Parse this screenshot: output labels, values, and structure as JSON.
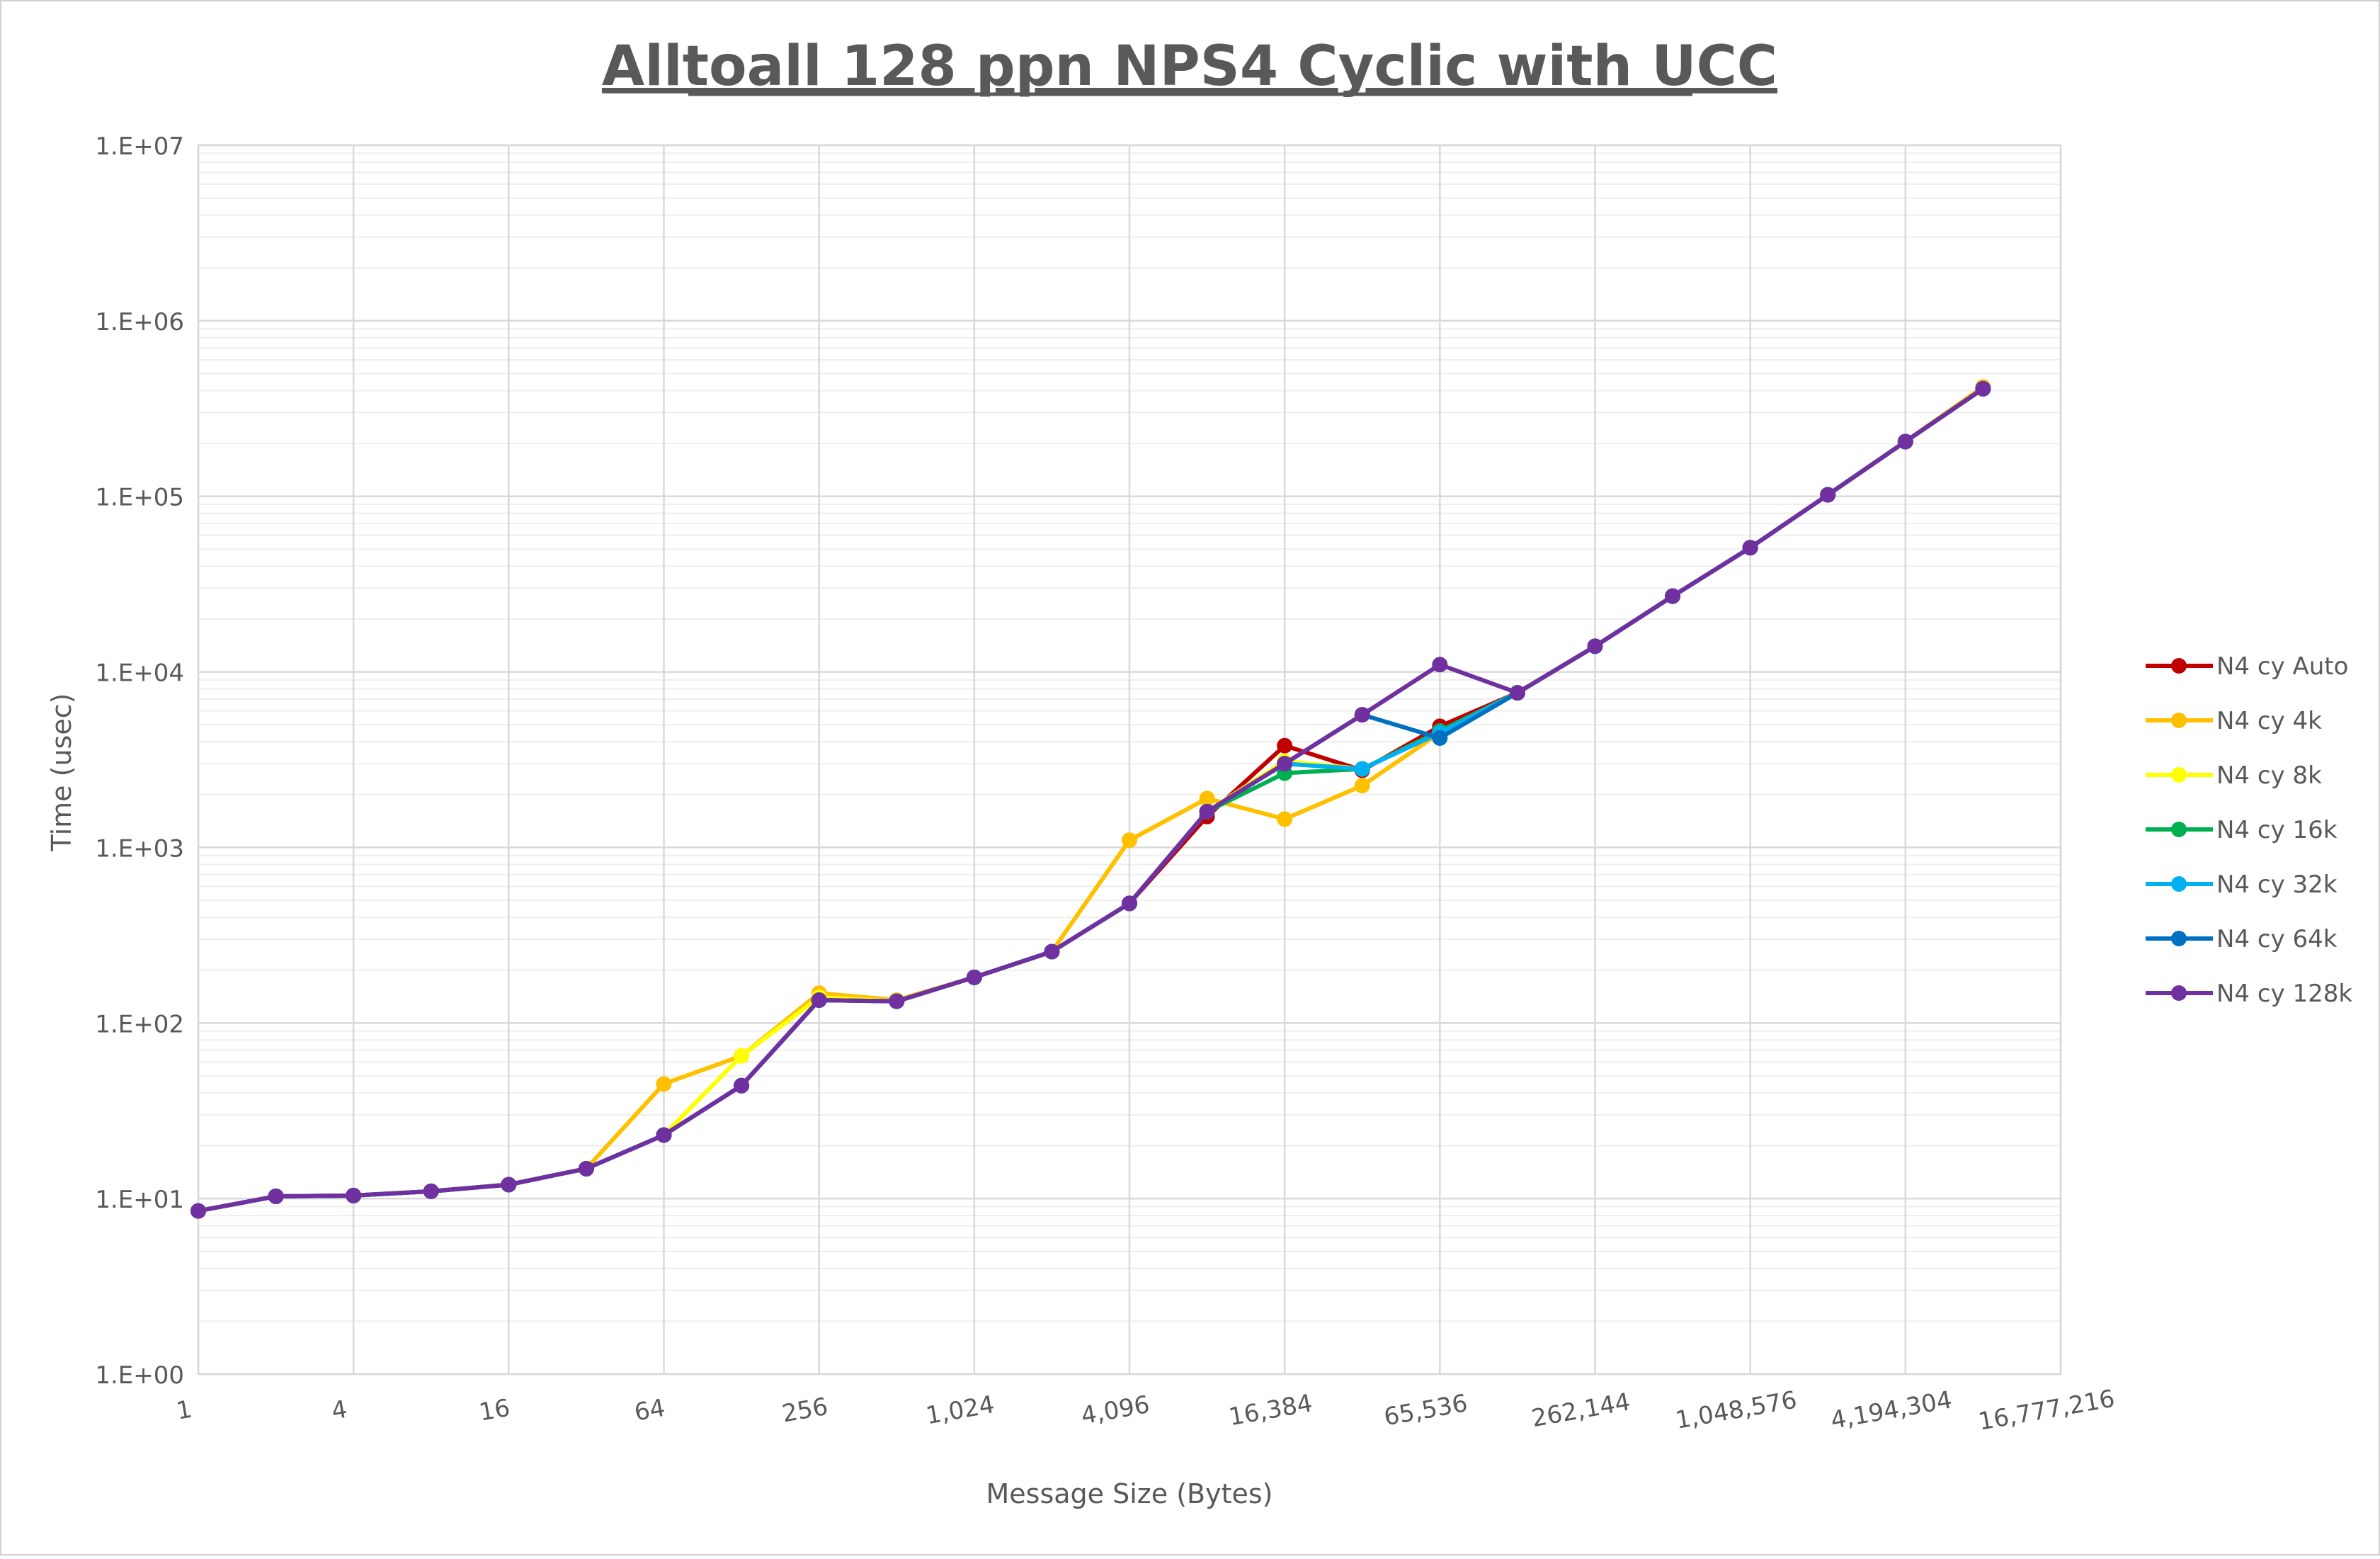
{
  "chart_data": {
    "type": "line",
    "title": "Alltoall 128 ppn NPS4 Cyclic with UCC",
    "xlabel": "Message Size (Bytes)",
    "ylabel": "Time (usec)",
    "x_scale": "log2",
    "y_scale": "log10",
    "xlim": [
      1,
      16777216
    ],
    "ylim": [
      1,
      10000000
    ],
    "x_ticks": [
      1,
      4,
      16,
      64,
      256,
      1024,
      4096,
      16384,
      65536,
      262144,
      1048576,
      4194304,
      16777216
    ],
    "x_tick_labels": [
      "1",
      "4",
      "16",
      "64",
      "256",
      "1,024",
      "4,096",
      "16,384",
      "65,536",
      "262,144",
      "1,048,576",
      "4,194,304",
      "16,777,216"
    ],
    "y_ticks": [
      1,
      10,
      100,
      1000,
      10000,
      100000,
      1000000,
      10000000
    ],
    "y_tick_labels": [
      "1.E+00",
      "1.E+01",
      "1.E+02",
      "1.E+03",
      "1.E+04",
      "1.E+05",
      "1.E+06",
      "1.E+07"
    ],
    "grid": true,
    "legend_position": "right",
    "x": [
      1,
      2,
      4,
      8,
      16,
      32,
      64,
      128,
      256,
      512,
      1024,
      2048,
      4096,
      8192,
      16384,
      32768,
      65536,
      131072,
      262144,
      524288,
      1048576,
      2097152,
      4194304,
      8388608
    ],
    "series": [
      {
        "name": "N4 cy Auto",
        "color": "#C00000",
        "values": [
          8.5,
          10.3,
          10.4,
          11,
          12,
          14.8,
          23,
          44,
          135,
          133,
          182,
          255,
          480,
          1500,
          3800,
          2750,
          4900,
          7600,
          14000,
          27000,
          51000,
          102000,
          205000,
          410000
        ]
      },
      {
        "name": "N4 cy 4k",
        "color": "#FFC000",
        "values": [
          8.5,
          10.3,
          10.4,
          11,
          12,
          14.8,
          45,
          65,
          148,
          135,
          182,
          255,
          1100,
          1900,
          1450,
          2250,
          4500,
          7600,
          14000,
          27000,
          51000,
          102000,
          205000,
          420000
        ]
      },
      {
        "name": "N4 cy 8k",
        "color": "#FFFF00",
        "values": [
          8.5,
          10.3,
          10.4,
          11,
          12,
          14.8,
          23,
          65,
          140,
          133,
          182,
          255,
          480,
          1600,
          3100,
          2800,
          4600,
          7600,
          14000,
          27000,
          51000,
          102000,
          205000,
          410000
        ]
      },
      {
        "name": "N4 cy 16k",
        "color": "#00B050",
        "values": [
          8.5,
          10.3,
          10.4,
          11,
          12,
          14.8,
          23,
          44,
          135,
          133,
          182,
          255,
          480,
          1600,
          2650,
          2800,
          4600,
          7600,
          14000,
          27000,
          51000,
          102000,
          205000,
          410000
        ]
      },
      {
        "name": "N4 cy 32k",
        "color": "#00B0F0",
        "values": [
          8.5,
          10.3,
          10.4,
          11,
          12,
          14.8,
          23,
          44,
          135,
          133,
          182,
          255,
          480,
          1600,
          3000,
          2800,
          4500,
          7600,
          14000,
          27000,
          51000,
          102000,
          205000,
          410000
        ]
      },
      {
        "name": "N4 cy 64k",
        "color": "#0070C0",
        "values": [
          8.5,
          10.3,
          10.4,
          11,
          12,
          14.8,
          23,
          44,
          135,
          133,
          182,
          255,
          480,
          1600,
          3000,
          5700,
          4200,
          7600,
          14000,
          27000,
          51000,
          102000,
          205000,
          410000
        ]
      },
      {
        "name": "N4 cy 128k",
        "color": "#7030A0",
        "values": [
          8.5,
          10.3,
          10.4,
          11,
          12,
          14.8,
          23,
          44,
          135,
          133,
          182,
          255,
          480,
          1600,
          3000,
          5700,
          11000,
          7600,
          14000,
          27000,
          51000,
          102000,
          205000,
          410000
        ]
      }
    ]
  }
}
